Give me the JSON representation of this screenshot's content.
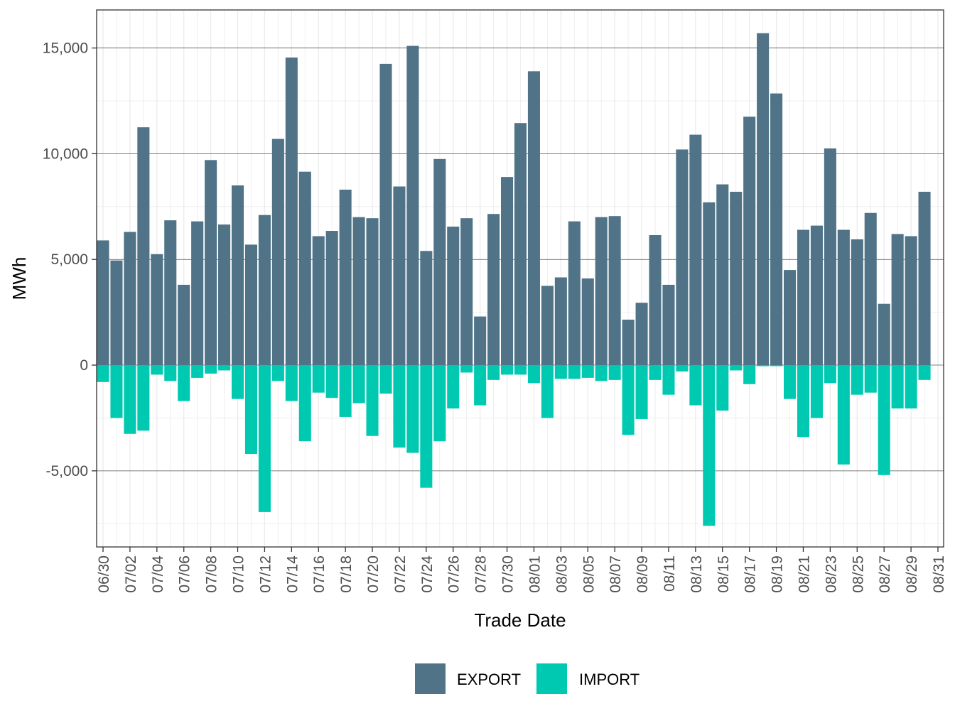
{
  "chart_data": {
    "type": "bar",
    "title": "",
    "xlabel": "Trade Date",
    "ylabel": "MWh",
    "ylim": [
      -8600,
      16800
    ],
    "yticks": [
      -5000,
      0,
      5000,
      10000,
      15000
    ],
    "ytick_labels": [
      "-5,000",
      "0",
      "5,000",
      "10,000",
      "15,000"
    ],
    "grid": true,
    "legend_position": "bottom",
    "colors": {
      "EXPORT": "#507387",
      "IMPORT": "#00C9B1"
    },
    "categories": [
      "06/30",
      "07/01",
      "07/02",
      "07/03",
      "07/04",
      "07/05",
      "07/06",
      "07/07",
      "07/08",
      "07/09",
      "07/10",
      "07/11",
      "07/12",
      "07/13",
      "07/14",
      "07/15",
      "07/16",
      "07/17",
      "07/18",
      "07/19",
      "07/20",
      "07/21",
      "07/22",
      "07/23",
      "07/24",
      "07/25",
      "07/26",
      "07/27",
      "07/28",
      "07/29",
      "07/30",
      "07/31",
      "08/01",
      "08/02",
      "08/03",
      "08/04",
      "08/05",
      "08/06",
      "08/07",
      "08/08",
      "08/09",
      "08/10",
      "08/11",
      "08/12",
      "08/13",
      "08/14",
      "08/15",
      "08/16",
      "08/17",
      "08/18",
      "08/19",
      "08/20",
      "08/21",
      "08/22",
      "08/23",
      "08/24",
      "08/25",
      "08/26",
      "08/27",
      "08/28",
      "08/29",
      "08/30",
      "08/31"
    ],
    "tick_labels": [
      "06/30",
      "07/02",
      "07/04",
      "07/06",
      "07/08",
      "07/10",
      "07/12",
      "07/14",
      "07/16",
      "07/18",
      "07/20",
      "07/22",
      "07/24",
      "07/26",
      "07/28",
      "07/30",
      "08/01",
      "08/03",
      "08/05",
      "08/07",
      "08/09",
      "08/11",
      "08/13",
      "08/15",
      "08/17",
      "08/19",
      "08/21",
      "08/23",
      "08/25",
      "08/27",
      "08/29",
      "08/31"
    ],
    "series": [
      {
        "name": "EXPORT",
        "values": [
          5900,
          4950,
          6300,
          11250,
          5250,
          6850,
          3800,
          6800,
          9700,
          6650,
          8500,
          5700,
          7100,
          10700,
          14550,
          9150,
          6100,
          6350,
          8300,
          7000,
          6950,
          14250,
          8450,
          15100,
          5400,
          9750,
          6550,
          6950,
          2300,
          7150,
          8900,
          11450,
          13900,
          3750,
          4150,
          6800,
          4100,
          7000,
          7050,
          2150,
          2950,
          6150,
          3800,
          10200,
          10900,
          7700,
          8550,
          8200,
          11750,
          15700,
          12850,
          4500,
          6400,
          6600,
          10250,
          6400,
          5950,
          7200,
          2900,
          6200,
          6100,
          8200,
          0
        ]
      },
      {
        "name": "IMPORT",
        "values": [
          -800,
          -2500,
          -3250,
          -3100,
          -450,
          -750,
          -1700,
          -600,
          -400,
          -250,
          -1600,
          -4200,
          -6950,
          -750,
          -1700,
          -3600,
          -1300,
          -1550,
          -2450,
          -1800,
          -3350,
          -1350,
          -3900,
          -4150,
          -5800,
          -3600,
          -2050,
          -350,
          -1900,
          -700,
          -450,
          -450,
          -850,
          -2500,
          -650,
          -650,
          -600,
          -750,
          -700,
          -3300,
          -2550,
          -700,
          -1400,
          -300,
          -1900,
          -7600,
          -2150,
          -250,
          -900,
          -50,
          -50,
          -1600,
          -3400,
          -2500,
          -850,
          -4700,
          -1400,
          -1300,
          -5200,
          -2050,
          -2050,
          -700,
          0
        ]
      }
    ]
  }
}
